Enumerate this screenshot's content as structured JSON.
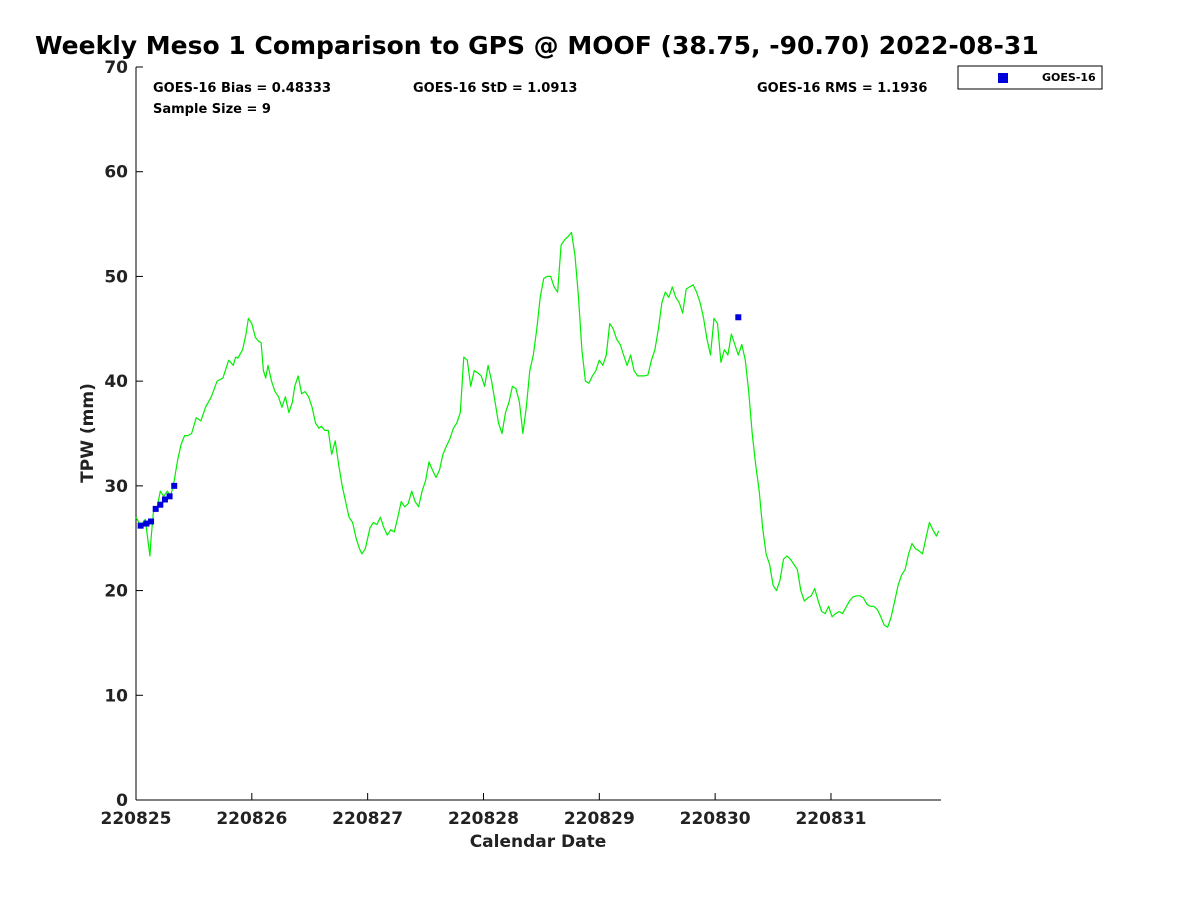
{
  "chart_data": {
    "type": "line",
    "title": "Weekly Meso 1 Comparison to GPS @ MOOF (38.75, -90.70) 2022-08-31",
    "xlabel": "Calendar Date",
    "ylabel": "TPW (mm)",
    "xlim": [
      0,
      6.95
    ],
    "ylim": [
      0,
      70
    ],
    "x_ticks": [
      0,
      1,
      2,
      3,
      4,
      5,
      6
    ],
    "x_tick_labels": [
      "220825",
      "220826",
      "220827",
      "220828",
      "220829",
      "220830",
      "220831"
    ],
    "y_ticks": [
      0,
      10,
      20,
      30,
      40,
      50,
      60,
      70
    ],
    "y_tick_labels": [
      "0",
      "10",
      "20",
      "30",
      "40",
      "50",
      "60",
      "70"
    ],
    "grid": false,
    "legend_position": "top-right",
    "stats": {
      "bias": "GOES-16 Bias = 0.48333",
      "std": "GOES-16 StD = 1.0913",
      "rms": "GOES-16 RMS = 1.1936",
      "sample": "Sample Size = 9"
    },
    "series": [
      {
        "name": "GPS",
        "kind": "line",
        "color": "#00ee00",
        "x": [
          0.0,
          0.04,
          0.08,
          0.12,
          0.13,
          0.15,
          0.18,
          0.21,
          0.24,
          0.27,
          0.3,
          0.33,
          0.36,
          0.39,
          0.42,
          0.45,
          0.48,
          0.52,
          0.56,
          0.6,
          0.65,
          0.7,
          0.75,
          0.8,
          0.84,
          0.86,
          0.88,
          0.92,
          0.95,
          0.97,
          1.0,
          1.03,
          1.06,
          1.08,
          1.1,
          1.12,
          1.14,
          1.17,
          1.2,
          1.23,
          1.26,
          1.29,
          1.32,
          1.35,
          1.37,
          1.4,
          1.43,
          1.46,
          1.49,
          1.52,
          1.55,
          1.58,
          1.6,
          1.63,
          1.66,
          1.69,
          1.72,
          1.75,
          1.78,
          1.81,
          1.84,
          1.87,
          1.9,
          1.93,
          1.95,
          1.98,
          2.02,
          2.05,
          2.08,
          2.11,
          2.14,
          2.17,
          2.2,
          2.23,
          2.26,
          2.29,
          2.32,
          2.35,
          2.38,
          2.41,
          2.44,
          2.47,
          2.5,
          2.53,
          2.56,
          2.59,
          2.62,
          2.65,
          2.68,
          2.71,
          2.74,
          2.77,
          2.8,
          2.83,
          2.86,
          2.89,
          2.92,
          2.95,
          2.98,
          3.01,
          3.04,
          3.07,
          3.1,
          3.13,
          3.16,
          3.19,
          3.22,
          3.25,
          3.28,
          3.31,
          3.34,
          3.37,
          3.4,
          3.43,
          3.46,
          3.49,
          3.52,
          3.55,
          3.58,
          3.61,
          3.64,
          3.67,
          3.7,
          3.73,
          3.76,
          3.79,
          3.82,
          3.85,
          3.88,
          3.91,
          3.94,
          3.97,
          4.0,
          4.03,
          4.06,
          4.09,
          4.12,
          4.15,
          4.18,
          4.21,
          4.24,
          4.27,
          4.3,
          4.33,
          4.36,
          4.39,
          4.42,
          4.45,
          4.48,
          4.51,
          4.54,
          4.57,
          4.6,
          4.63,
          4.66,
          4.69,
          4.72,
          4.75,
          4.78,
          4.81,
          4.84,
          4.87,
          4.9,
          4.93,
          4.96,
          4.99,
          5.02,
          5.05,
          5.08,
          5.11,
          5.14,
          5.17,
          5.2,
          5.23,
          5.26,
          5.29,
          5.32,
          5.35,
          5.38,
          5.41,
          5.44,
          5.47,
          5.5,
          5.53,
          5.56,
          5.59,
          5.62,
          5.65,
          5.68,
          5.71,
          5.74,
          5.77,
          5.8,
          5.83,
          5.86,
          5.89,
          5.92,
          5.95,
          5.98,
          6.01,
          6.04,
          6.07,
          6.1,
          6.13,
          6.16,
          6.19,
          6.22,
          6.25,
          6.28,
          6.31,
          6.34,
          6.37,
          6.4,
          6.43,
          6.46,
          6.49,
          6.52,
          6.55,
          6.58,
          6.61,
          6.64,
          6.67,
          6.7,
          6.73,
          6.76,
          6.79,
          6.82,
          6.85,
          6.88,
          6.91,
          6.93
        ],
        "y": [
          27.0,
          26.2,
          26.8,
          23.3,
          25.0,
          27.5,
          27.8,
          29.5,
          29.0,
          29.5,
          29.0,
          30.5,
          32.5,
          34.0,
          34.8,
          34.8,
          35.0,
          36.5,
          36.2,
          37.5,
          38.5,
          40.0,
          40.3,
          42.0,
          41.5,
          42.3,
          42.2,
          43.0,
          44.5,
          46.0,
          45.5,
          44.2,
          43.8,
          43.7,
          41.0,
          40.3,
          41.5,
          40.0,
          39.0,
          38.5,
          37.5,
          38.5,
          37.0,
          38.0,
          39.5,
          40.5,
          38.8,
          39.0,
          38.5,
          37.5,
          36.0,
          35.5,
          35.7,
          35.3,
          35.3,
          33.0,
          34.3,
          32.0,
          30.0,
          28.5,
          27.0,
          26.5,
          25.0,
          24.0,
          23.5,
          24.0,
          26.0,
          26.5,
          26.3,
          27.0,
          26.0,
          25.3,
          25.8,
          25.6,
          27.0,
          28.5,
          28.0,
          28.3,
          29.5,
          28.5,
          28.0,
          29.5,
          30.5,
          32.3,
          31.5,
          30.8,
          31.5,
          33.0,
          33.8,
          34.5,
          35.5,
          36.0,
          37.0,
          42.3,
          42.0,
          39.5,
          41.0,
          40.8,
          40.5,
          39.5,
          41.5,
          40.0,
          38.0,
          36.0,
          35.0,
          37.0,
          38.0,
          39.5,
          39.3,
          38.0,
          35.0,
          37.5,
          41.0,
          42.5,
          45.0,
          48.0,
          49.8,
          50.0,
          50.0,
          49.0,
          48.5,
          53.0,
          53.5,
          53.8,
          54.2,
          52.0,
          48.0,
          43.0,
          40.0,
          39.8,
          40.5,
          41.0,
          42.0,
          41.5,
          42.5,
          45.5,
          45.0,
          44.0,
          43.5,
          42.5,
          41.5,
          42.5,
          41.0,
          40.5,
          40.5,
          40.5,
          40.6,
          42.0,
          43.0,
          45.0,
          47.5,
          48.5,
          48.0,
          49.0,
          48.0,
          47.5,
          46.5,
          48.8,
          49.0,
          49.2,
          48.5,
          47.5,
          46.0,
          44.0,
          42.5,
          46.0,
          45.5,
          41.8,
          43.0,
          42.5,
          44.5,
          43.5,
          42.5,
          43.5,
          42.0,
          39.0,
          35.0,
          32.0,
          29.5,
          26.0,
          23.5,
          22.5,
          20.5,
          20.0,
          21.0,
          23.0,
          23.3,
          23.0,
          22.5,
          22.0,
          20.0,
          19.0,
          19.3,
          19.5,
          20.2,
          19.0,
          18.0,
          17.8,
          18.5,
          17.5,
          17.8,
          18.0,
          17.8,
          18.4,
          19.0,
          19.4,
          19.5,
          19.5,
          19.3,
          18.7,
          18.5,
          18.5,
          18.2,
          17.5,
          16.7,
          16.5,
          17.5,
          19.0,
          20.5,
          21.5,
          22.0,
          23.5,
          24.5,
          24.0,
          23.8,
          23.5,
          25.0,
          26.5,
          25.8,
          25.2,
          25.7
        ]
      },
      {
        "name": "GOES-16",
        "kind": "scatter",
        "color": "#0000dd",
        "marker": "square",
        "x": [
          0.04,
          0.09,
          0.13,
          0.17,
          0.21,
          0.25,
          0.29,
          0.33,
          5.2
        ],
        "y": [
          26.2,
          26.4,
          26.6,
          27.8,
          28.2,
          28.7,
          29.0,
          30.0,
          46.1
        ]
      }
    ],
    "legend": [
      {
        "label": "GOES-16",
        "color": "#0000dd"
      }
    ]
  }
}
